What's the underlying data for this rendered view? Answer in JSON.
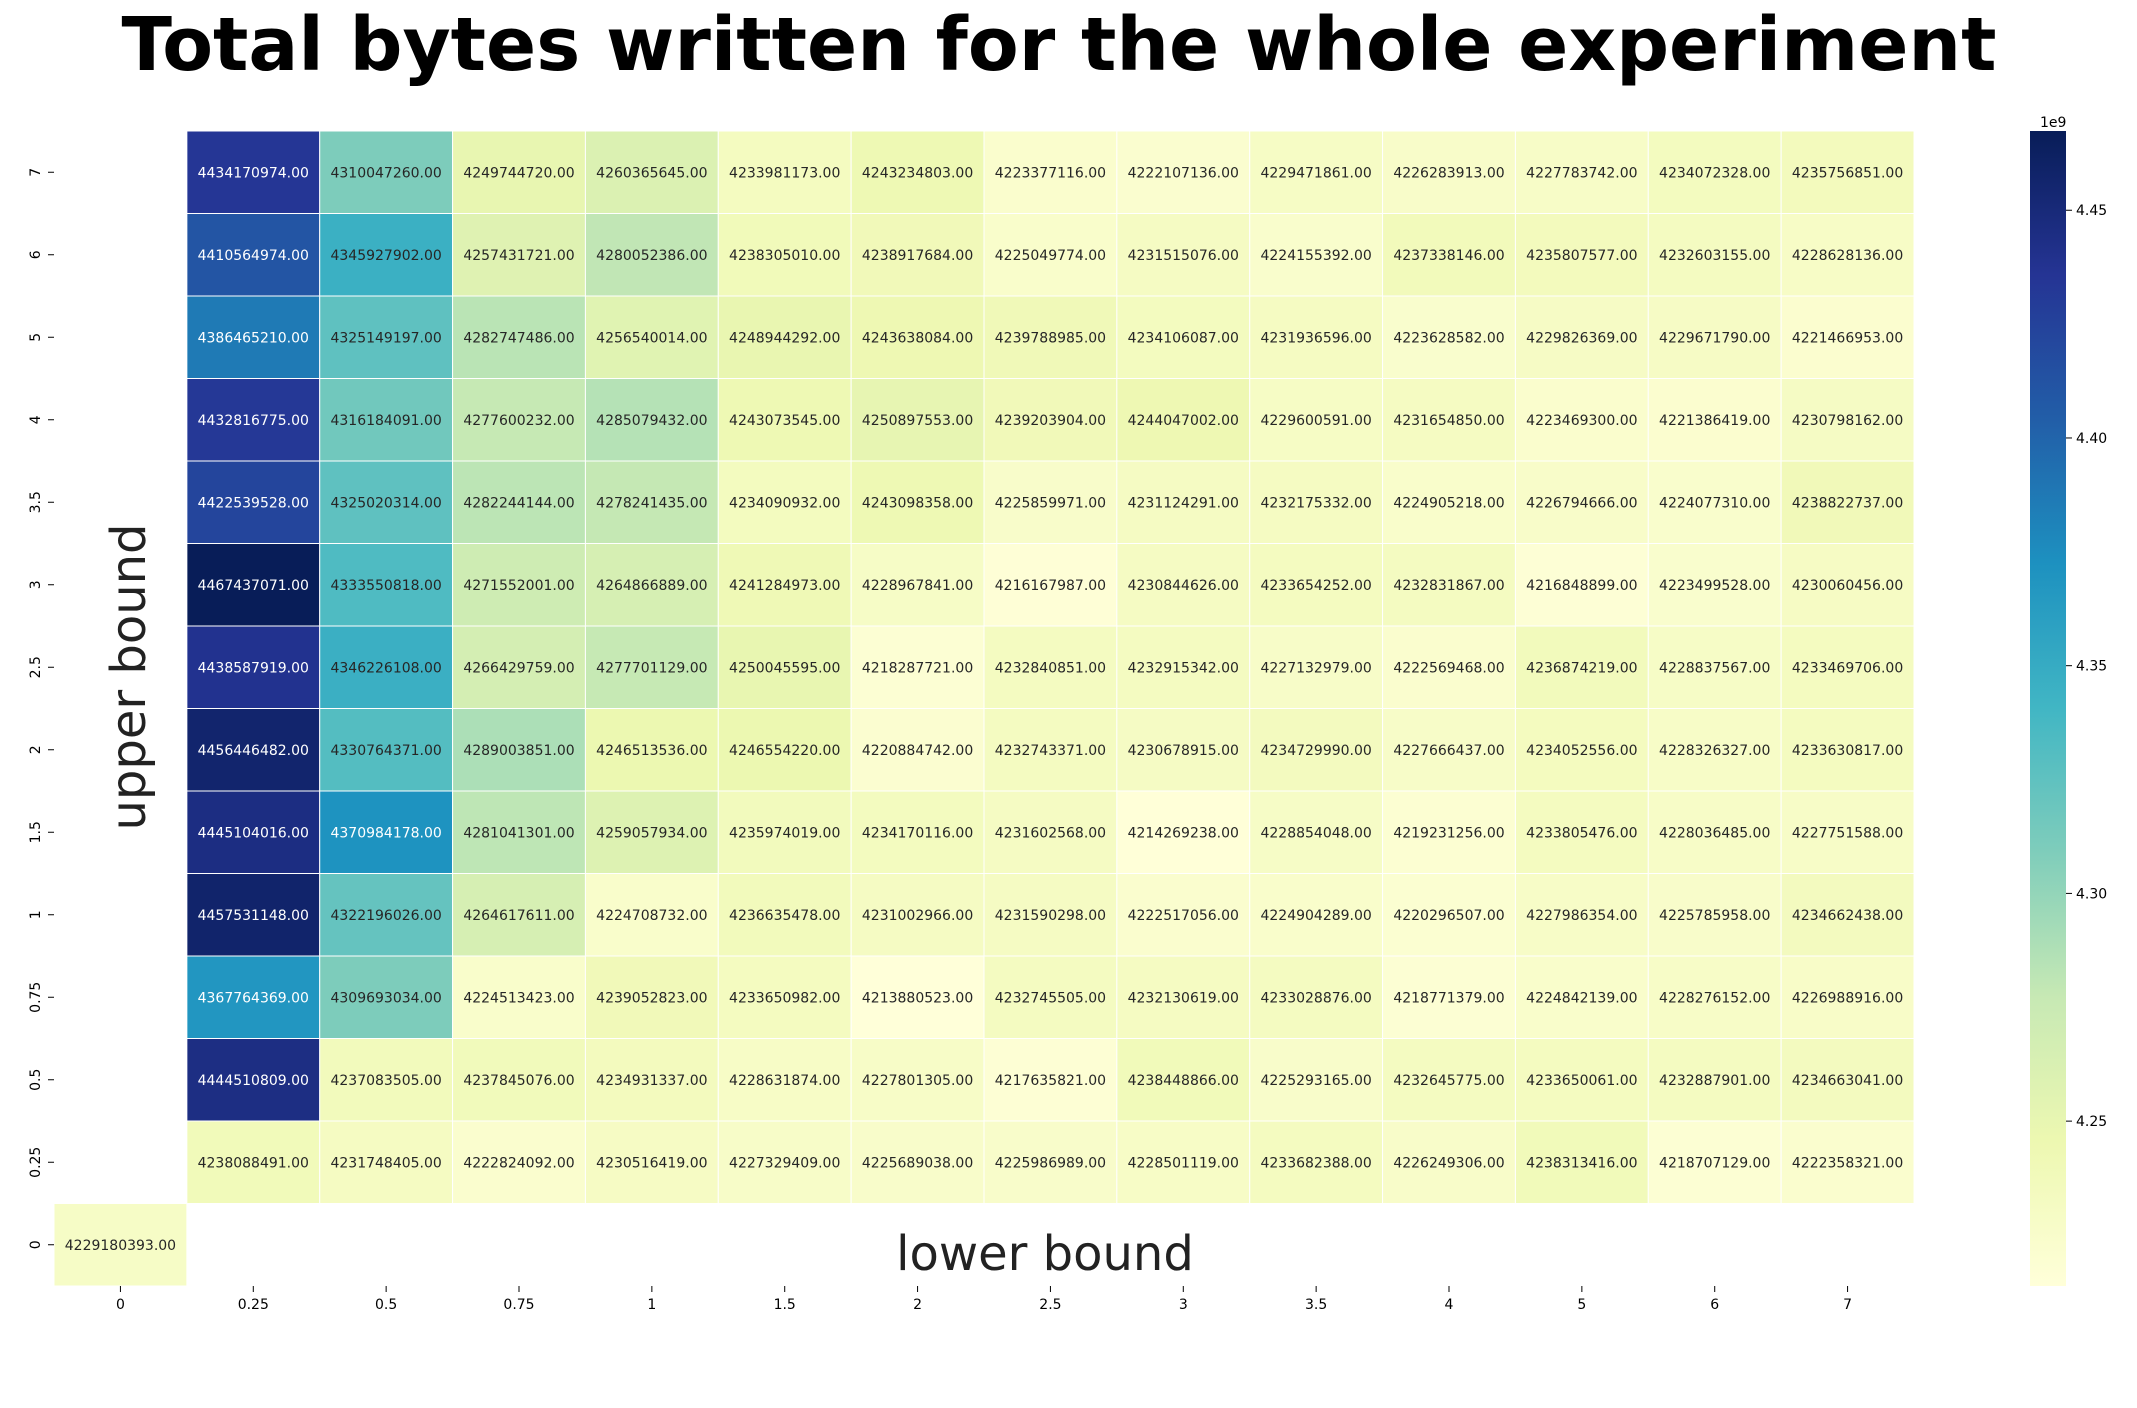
{
  "chart_data": {
    "type": "heatmap",
    "title": "Total bytes written for the whole experiment",
    "xlabel": "lower bound",
    "ylabel": "upper bound",
    "x_categories": [
      "0",
      "0.25",
      "0.5",
      "0.75",
      "1",
      "1.5",
      "2",
      "2.5",
      "3",
      "3.5",
      "4",
      "5",
      "6",
      "7"
    ],
    "y_categories": [
      "7",
      "6",
      "5",
      "4",
      "3.5",
      "3",
      "2.5",
      "2",
      "1.5",
      "1",
      "0.75",
      "0.5",
      "0.25",
      "0"
    ],
    "values": [
      [
        null,
        4434170974.0,
        4310047260.0,
        4249744720.0,
        4260365645.0,
        4233981173.0,
        4243234803.0,
        4223377116.0,
        4222107136.0,
        4229471861.0,
        4226283913.0,
        4227783742.0,
        4234072328.0,
        4235756851.0
      ],
      [
        null,
        4410564974.0,
        4345927902.0,
        4257431721.0,
        4280052386.0,
        4238305010.0,
        4238917684.0,
        4225049774.0,
        4231515076.0,
        4224155392.0,
        4237338146.0,
        4235807577.0,
        4232603155.0,
        4228628136.0
      ],
      [
        null,
        4386465210.0,
        4325149197.0,
        4282747486.0,
        4256540014.0,
        4248944292.0,
        4243638084.0,
        4239788985.0,
        4234106087.0,
        4231936596.0,
        4223628582.0,
        4229826369.0,
        4229671790.0,
        4221466953.0
      ],
      [
        null,
        4432816775.0,
        4316184091.0,
        4277600232.0,
        4285079432.0,
        4243073545.0,
        4250897553.0,
        4239203904.0,
        4244047002.0,
        4229600591.0,
        4231654850.0,
        4223469300.0,
        4221386419.0,
        4230798162.0
      ],
      [
        null,
        4422539528.0,
        4325020314.0,
        4282244144.0,
        4278241435.0,
        4234090932.0,
        4243098358.0,
        4225859971.0,
        4231124291.0,
        4232175332.0,
        4224905218.0,
        4226794666.0,
        4224077310.0,
        4238822737.0
      ],
      [
        null,
        4467437071.0,
        4333550818.0,
        4271552001.0,
        4264866889.0,
        4241284973.0,
        4228967841.0,
        4216167987.0,
        4230844626.0,
        4233654252.0,
        4232831867.0,
        4216848899.0,
        4223499528.0,
        4230060456.0
      ],
      [
        null,
        4438587919.0,
        4346226108.0,
        4266429759.0,
        4277701129.0,
        4250045595.0,
        4218287721.0,
        4232840851.0,
        4232915342.0,
        4227132979.0,
        4222569468.0,
        4236874219.0,
        4228837567.0,
        4233469706.0
      ],
      [
        null,
        4456446482.0,
        4330764371.0,
        4289003851.0,
        4246513536.0,
        4246554220.0,
        4220884742.0,
        4232743371.0,
        4230678915.0,
        4234729990.0,
        4227666437.0,
        4234052556.0,
        4228326327.0,
        4233630817.0
      ],
      [
        null,
        4445104016.0,
        4370984178.0,
        4281041301.0,
        4259057934.0,
        4235974019.0,
        4234170116.0,
        4231602568.0,
        4214269238.0,
        4228854048.0,
        4219231256.0,
        4233805476.0,
        4228036485.0,
        4227751588.0
      ],
      [
        null,
        4457531148.0,
        4322196026.0,
        4264617611.0,
        4224708732.0,
        4236635478.0,
        4231002966.0,
        4231590298.0,
        4222517056.0,
        4224904289.0,
        4220296507.0,
        4227986354.0,
        4225785958.0,
        4234662438.0
      ],
      [
        null,
        4367764369.0,
        4309693034.0,
        4224513423.0,
        4239052823.0,
        4233650982.0,
        4213880523.0,
        4232745505.0,
        4232130619.0,
        4233028876.0,
        4218771379.0,
        4224842139.0,
        4228276152.0,
        4226988916.0
      ],
      [
        null,
        4444510809.0,
        4237083505.0,
        4237845076.0,
        4234931337.0,
        4228631874.0,
        4227801305.0,
        4217635821.0,
        4238448866.0,
        4225293165.0,
        4232645775.0,
        4233650061.0,
        4232887901.0,
        4234663041.0
      ],
      [
        null,
        4238088491.0,
        4231748405.0,
        4222824092.0,
        4230516419.0,
        4227329409.0,
        4225689038.0,
        4225986989.0,
        4228501119.0,
        4233682388.0,
        4226249306.0,
        4238313416.0,
        4218707129.0,
        4222358321.0
      ],
      [
        4229180393.0,
        null,
        null,
        null,
        null,
        null,
        null,
        null,
        null,
        null,
        null,
        null,
        null,
        null
      ]
    ],
    "colormap": "YlGnBu",
    "vmin": 4213800000.0,
    "vmax": 4467400000.0,
    "colorbar": {
      "ticks": [
        4.25,
        4.3,
        4.35,
        4.4,
        4.45
      ],
      "tick_labels": [
        "4.25",
        "4.30",
        "4.35",
        "4.40",
        "4.45"
      ],
      "multiplier_label": "1e9"
    },
    "grid": false,
    "legend": "colorbar-right"
  }
}
